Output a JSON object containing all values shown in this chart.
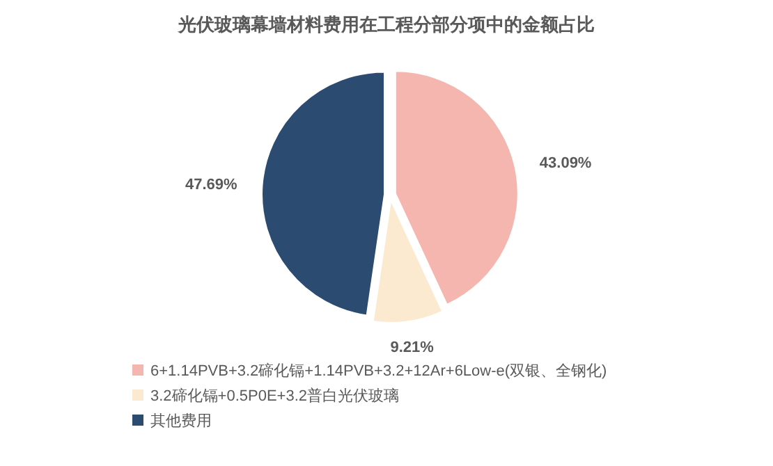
{
  "chart_data": {
    "type": "pie",
    "title": "光伏玻璃幕墙材料费用在工程分部分项中的金额占比",
    "categories": [
      "6+1.14PVB+3.2碲化镉+1.14PVB+3.2+12Ar+6Low-e(双银、全钢化)",
      "3.2碲化镉+0.5P0E+3.2普白光伏玻璃",
      "其他费用"
    ],
    "values": [
      43.09,
      9.21,
      47.69
    ],
    "colors": [
      "#f4b6ae",
      "#fbead0",
      "#2b4b70"
    ],
    "value_labels": [
      "43.09%",
      "9.21%",
      "47.69%"
    ],
    "legend": "bottom left"
  }
}
